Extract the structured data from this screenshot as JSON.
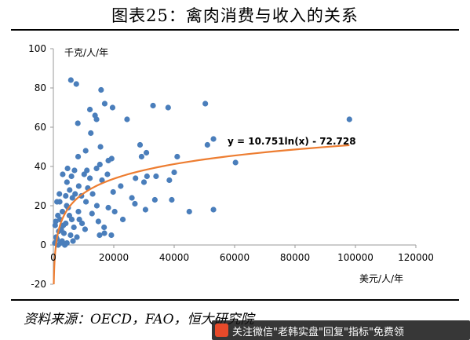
{
  "figure": {
    "title": "图表25：禽肉消费与收入的关系",
    "source": "资料来源：OECD，FAO，恒大研究院",
    "watermark": "关注微信\"老韩实盘\"回复\"指标\"免费领"
  },
  "colors": {
    "points": "#4a7ebb",
    "trend": "#ed7d31",
    "axis": "#9a9a9a",
    "text": "#000000"
  },
  "chart_data": {
    "type": "scatter",
    "xlabel": "美元/人/年",
    "ylabel": "千克/人/年",
    "xlim": [
      0,
      120000
    ],
    "ylim": [
      -20,
      100
    ],
    "x_ticks": [
      "0",
      "20000",
      "40000",
      "60000",
      "80000",
      "100000",
      "120000"
    ],
    "y_ticks": [
      "-20",
      "0",
      "20",
      "40",
      "60",
      "80",
      "100"
    ],
    "grid": false,
    "trendline": {
      "type": "logarithmic",
      "a": 10.751,
      "b": -72.728,
      "label": "y = 10.751ln(x) - 72.728"
    },
    "series": [
      {
        "points": [
          [
            5800,
            84
          ],
          [
            7600,
            82
          ],
          [
            15800,
            79
          ],
          [
            17000,
            72
          ],
          [
            12100,
            69
          ],
          [
            13800,
            66
          ],
          [
            19600,
            70
          ],
          [
            14300,
            64
          ],
          [
            8100,
            62
          ],
          [
            33000,
            71
          ],
          [
            38000,
            70
          ],
          [
            50300,
            72
          ],
          [
            24400,
            64
          ],
          [
            98000,
            64
          ],
          [
            53000,
            54
          ],
          [
            12400,
            57
          ],
          [
            15600,
            50
          ],
          [
            28700,
            51
          ],
          [
            51000,
            51
          ],
          [
            8200,
            45
          ],
          [
            30800,
            47
          ],
          [
            29200,
            45
          ],
          [
            19300,
            44
          ],
          [
            10700,
            48
          ],
          [
            15400,
            41
          ],
          [
            18200,
            43
          ],
          [
            4700,
            39
          ],
          [
            7000,
            38
          ],
          [
            11100,
            38
          ],
          [
            14300,
            39
          ],
          [
            41000,
            45
          ],
          [
            60300,
            42
          ],
          [
            3100,
            36
          ],
          [
            6000,
            35
          ],
          [
            10200,
            36
          ],
          [
            17900,
            36
          ],
          [
            22300,
            30
          ],
          [
            31000,
            35
          ],
          [
            34000,
            35
          ],
          [
            40000,
            37
          ],
          [
            4500,
            32
          ],
          [
            8400,
            30
          ],
          [
            12100,
            34
          ],
          [
            16100,
            33
          ],
          [
            19800,
            27
          ],
          [
            27200,
            34
          ],
          [
            5400,
            28
          ],
          [
            9300,
            25
          ],
          [
            13000,
            26
          ],
          [
            30000,
            32
          ],
          [
            38400,
            33
          ],
          [
            2000,
            26
          ],
          [
            6300,
            24
          ],
          [
            10800,
            22
          ],
          [
            14400,
            20
          ],
          [
            26000,
            24
          ],
          [
            33600,
            23
          ],
          [
            1200,
            22
          ],
          [
            4400,
            20
          ],
          [
            8300,
            17
          ],
          [
            12800,
            16
          ],
          [
            18200,
            19
          ],
          [
            27000,
            21
          ],
          [
            39200,
            23
          ],
          [
            3000,
            17
          ],
          [
            5300,
            15
          ],
          [
            8600,
            13
          ],
          [
            14900,
            12
          ],
          [
            20300,
            17
          ],
          [
            30500,
            18
          ],
          [
            45000,
            17
          ],
          [
            53000,
            18
          ],
          [
            2200,
            13
          ],
          [
            4100,
            11
          ],
          [
            6800,
            9
          ],
          [
            10500,
            8
          ],
          [
            16800,
            9
          ],
          [
            23000,
            13
          ],
          [
            600,
            10
          ],
          [
            1800,
            7
          ],
          [
            3500,
            6
          ],
          [
            5700,
            5
          ],
          [
            7800,
            4
          ],
          [
            15300,
            5
          ],
          [
            16900,
            6
          ],
          [
            19200,
            5
          ],
          [
            1200,
            3
          ],
          [
            2900,
            2
          ],
          [
            4500,
            1
          ],
          [
            6500,
            2
          ],
          [
            500,
            1
          ],
          [
            1600,
            0
          ],
          [
            2400,
            1
          ],
          [
            3800,
            0
          ],
          [
            900,
            4
          ],
          [
            2600,
            8
          ],
          [
            4900,
            19
          ],
          [
            1500,
            15
          ],
          [
            3300,
            10
          ],
          [
            2100,
            22
          ],
          [
            7200,
            26
          ],
          [
            11400,
            29
          ],
          [
            800,
            12
          ],
          [
            4100,
            25
          ],
          [
            9500,
            11
          ],
          [
            6100,
            13
          ]
        ]
      }
    ]
  }
}
